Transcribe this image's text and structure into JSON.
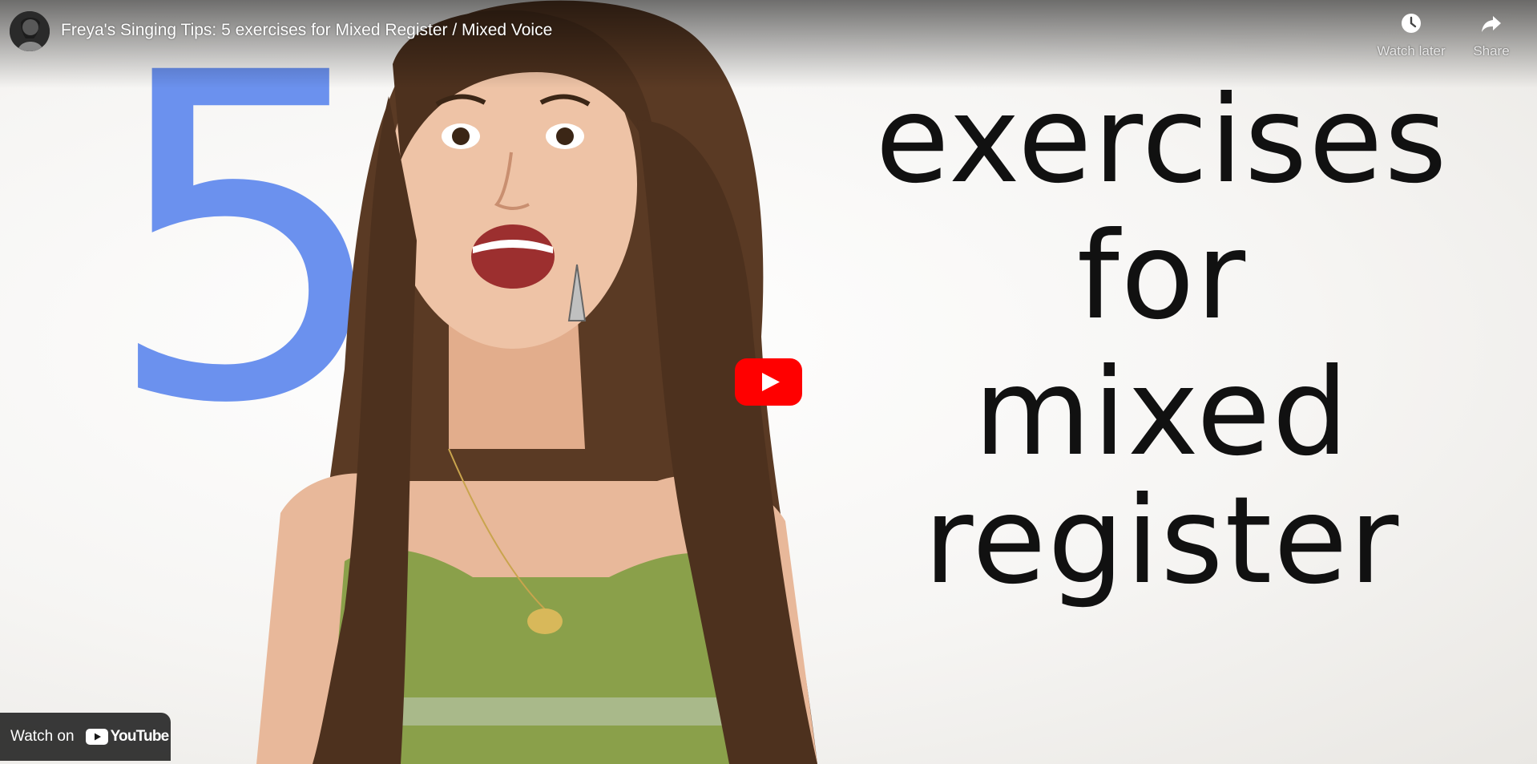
{
  "video": {
    "title": "Freya's Singing Tips: 5 exercises for Mixed Register / Mixed Voice"
  },
  "thumbnail": {
    "number": "5",
    "lines": [
      "exercises",
      "for",
      "mixed",
      "register"
    ],
    "number_color": "#6b91ee",
    "text_color": "#111111"
  },
  "actions": {
    "watch_later": {
      "label": "Watch later",
      "icon": "clock-icon"
    },
    "share": {
      "label": "Share",
      "icon": "share-arrow-icon"
    }
  },
  "play_button": {
    "icon": "play-icon",
    "color": "#ff0000"
  },
  "watch_on": {
    "label": "Watch on",
    "brand": "YouTube",
    "icon": "youtube-logo-icon"
  }
}
